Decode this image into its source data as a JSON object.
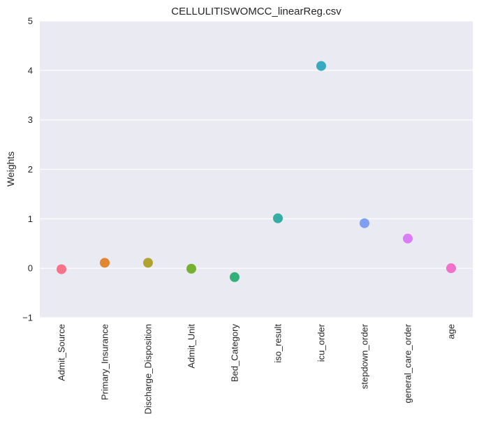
{
  "chart_data": {
    "type": "scatter",
    "title": "CELLULITISWOMCC_linearReg.csv",
    "xlabel": "",
    "ylabel": "Weights",
    "ylim": [
      -1,
      5
    ],
    "yticks": [
      -1,
      0,
      1,
      2,
      3,
      4,
      5
    ],
    "ytick_labels": [
      "−1",
      "0",
      "1",
      "2",
      "3",
      "4",
      "5"
    ],
    "grid": true,
    "categories": [
      "Admit_Source",
      "Primary_Insurance",
      "Discharge_Disposition",
      "Admit_Unit",
      "Bed_Category",
      "iso_result",
      "icu_order",
      "stepdown_order",
      "general_care_order",
      "age"
    ],
    "values": [
      -0.02,
      0.11,
      0.11,
      -0.01,
      -0.18,
      1.01,
      4.09,
      0.91,
      0.6,
      0.0
    ],
    "colors": [
      "#f77189",
      "#e18731",
      "#b0a231",
      "#77b131",
      "#33b07a",
      "#36ada4",
      "#38aac0",
      "#7f9ff5",
      "#da7ef5",
      "#f471cb"
    ]
  }
}
